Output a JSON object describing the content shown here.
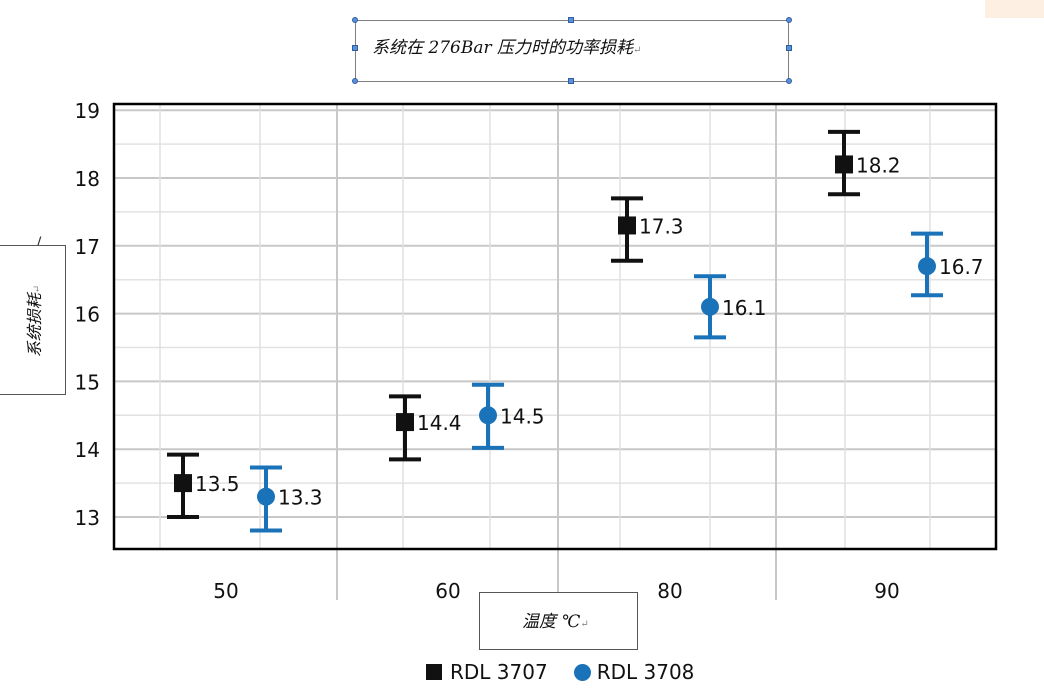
{
  "chart_data": {
    "type": "scatter",
    "title": "系统在 276Bar 压力时的功率损耗",
    "xlabel": "温度 ℃",
    "ylabel": "系统损耗",
    "categories": [
      "50",
      "60",
      "80",
      "90"
    ],
    "yticks": [
      "13",
      "14",
      "15",
      "16",
      "17",
      "18",
      "19"
    ],
    "ylim": [
      12.5,
      19
    ],
    "grid": true,
    "legend_position": "bottom",
    "error_bars": true,
    "series": [
      {
        "name": "RDL 3707",
        "marker": "square",
        "color": "#111111",
        "values": [
          13.5,
          14.4,
          17.3,
          18.2
        ],
        "error_low": [
          13.0,
          13.85,
          16.78,
          17.76
        ],
        "error_high": [
          13.92,
          14.78,
          17.7,
          18.68
        ],
        "labels": [
          "13.5",
          "14.4",
          "17.3",
          "18.2"
        ]
      },
      {
        "name": "RDL 3708",
        "marker": "circle",
        "color": "#1a72b8",
        "values": [
          13.3,
          14.5,
          16.1,
          16.7
        ],
        "error_low": [
          12.8,
          14.02,
          15.65,
          16.27
        ],
        "error_high": [
          13.73,
          14.95,
          16.55,
          17.18
        ],
        "labels": [
          "13.3",
          "14.5",
          "16.1",
          "16.7"
        ]
      }
    ]
  },
  "text_marks": {
    "para_mark": "↵",
    "ylabel_stray_mark": "/"
  }
}
